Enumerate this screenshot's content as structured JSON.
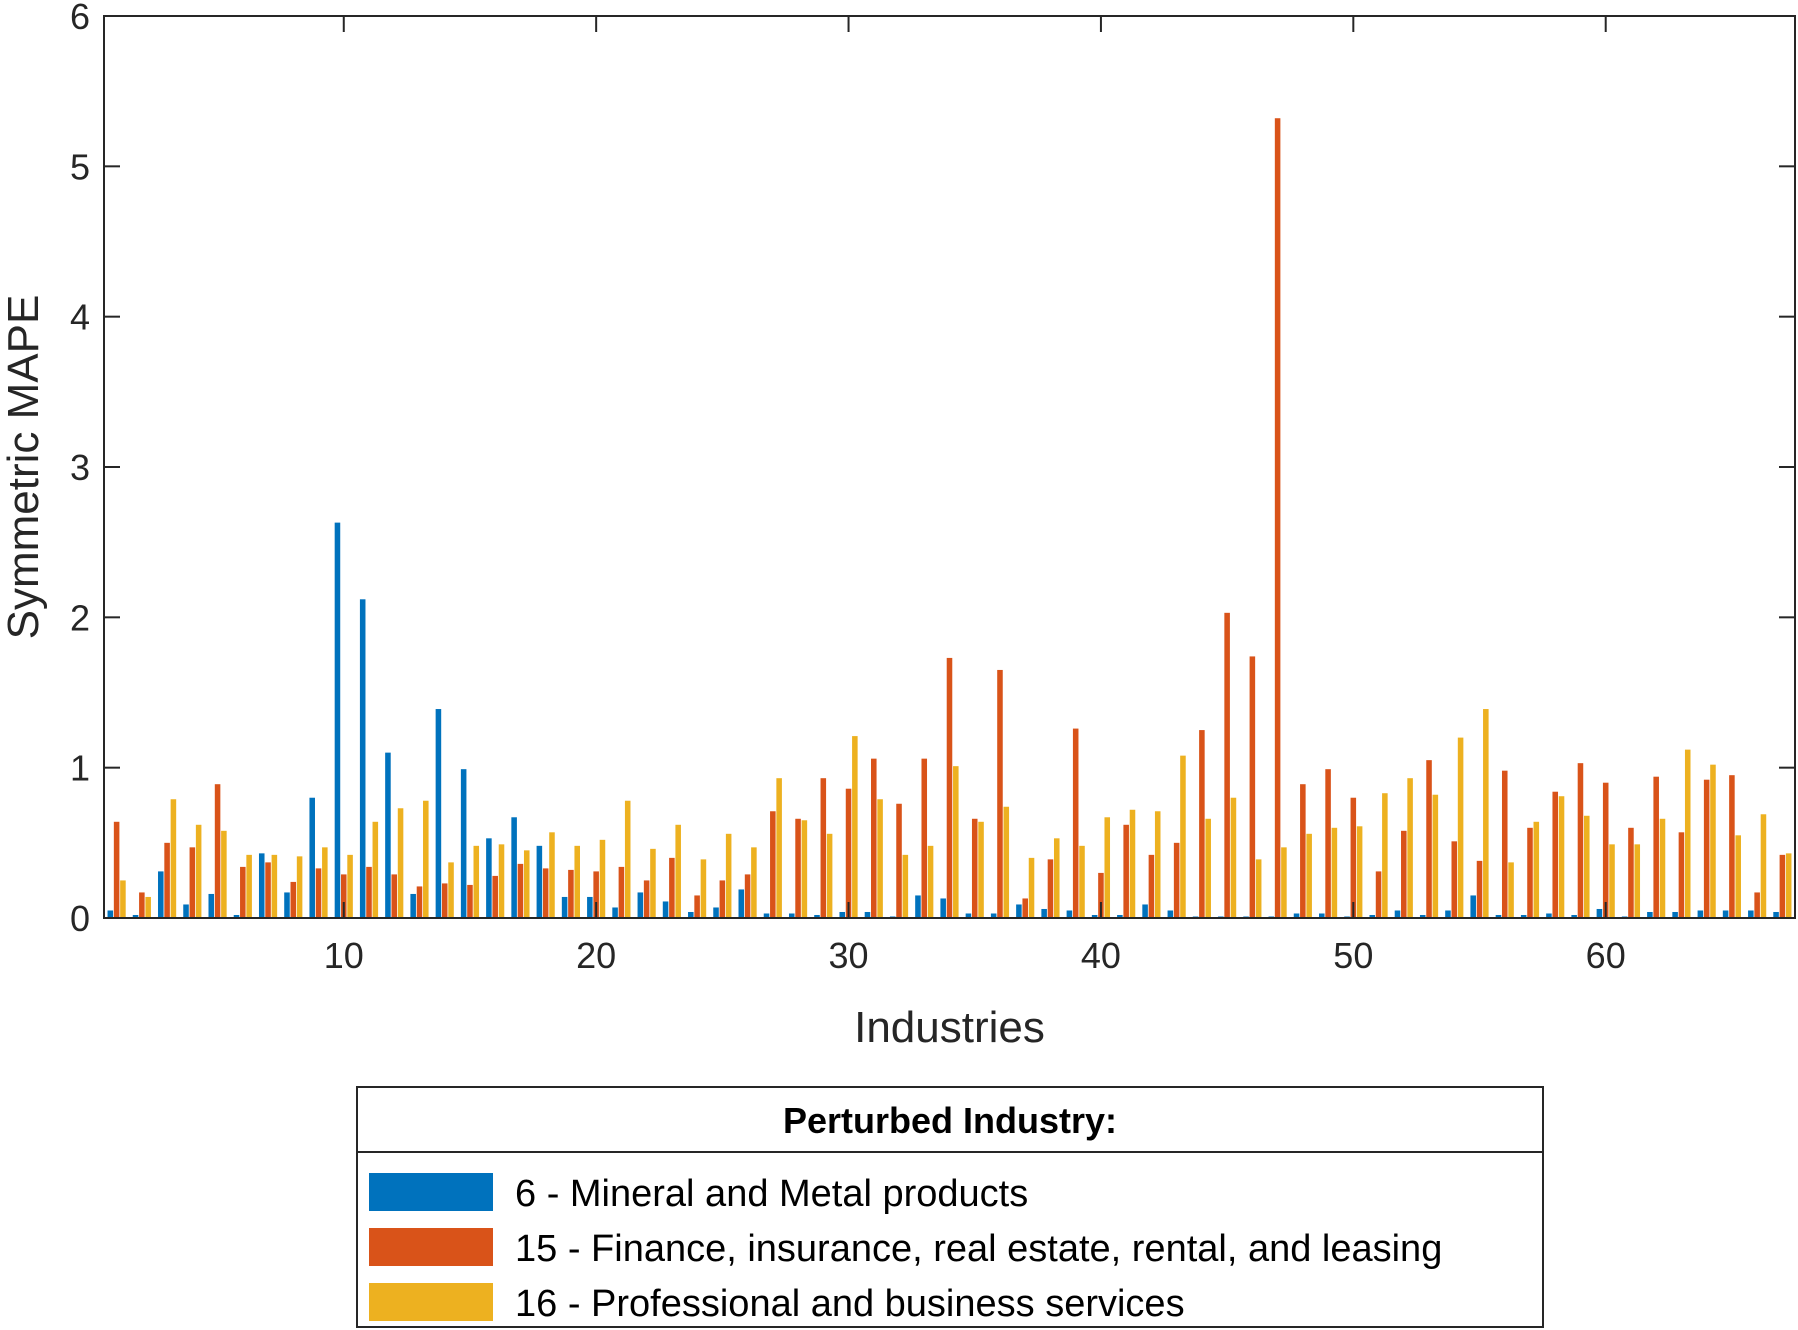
{
  "chart_data": {
    "type": "bar",
    "xlabel": "Industries",
    "ylabel": "Symmetric MAPE",
    "ylim": [
      0,
      6
    ],
    "xlim": [
      0.5,
      67.5
    ],
    "yticks": [
      0,
      1,
      2,
      3,
      4,
      5,
      6
    ],
    "xticks": [
      10,
      20,
      30,
      40,
      50,
      60
    ],
    "grid": false,
    "legend_placement": "below",
    "legend_title": "Perturbed Industry:",
    "x": [
      1,
      2,
      3,
      4,
      5,
      6,
      7,
      8,
      9,
      10,
      11,
      12,
      13,
      14,
      15,
      16,
      17,
      18,
      19,
      20,
      21,
      22,
      23,
      24,
      25,
      26,
      27,
      28,
      29,
      30,
      31,
      32,
      33,
      34,
      35,
      36,
      37,
      38,
      39,
      40,
      41,
      42,
      43,
      44,
      45,
      46,
      47,
      48,
      49,
      50,
      51,
      52,
      53,
      54,
      55,
      56,
      57,
      58,
      59,
      60,
      61,
      62,
      63,
      64,
      65,
      66,
      67
    ],
    "series": [
      {
        "name": "6 - Mineral and Metal products",
        "color": "#0072BD",
        "values": [
          0.05,
          0.02,
          0.31,
          0.09,
          0.16,
          0.02,
          0.43,
          0.17,
          0.8,
          2.63,
          2.12,
          1.1,
          0.16,
          1.39,
          0.99,
          0.53,
          0.67,
          0.48,
          0.14,
          0.14,
          0.07,
          0.17,
          0.11,
          0.04,
          0.07,
          0.19,
          0.03,
          0.03,
          0.02,
          0.04,
          0.04,
          0.01,
          0.15,
          0.13,
          0.03,
          0.03,
          0.09,
          0.06,
          0.05,
          0.02,
          0.02,
          0.09,
          0.05,
          0.01,
          0.01,
          0.01,
          0.01,
          0.03,
          0.03,
          0.01,
          0.02,
          0.05,
          0.02,
          0.05,
          0.15,
          0.02,
          0.02,
          0.03,
          0.02,
          0.06,
          0.01,
          0.04,
          0.04,
          0.05,
          0.05,
          0.05,
          0.04
        ]
      },
      {
        "name": "15 - Finance, insurance, real estate, rental, and leasing",
        "color": "#D95319",
        "values": [
          0.64,
          0.17,
          0.5,
          0.47,
          0.89,
          0.34,
          0.37,
          0.24,
          0.33,
          0.29,
          0.34,
          0.29,
          0.21,
          0.23,
          0.22,
          0.28,
          0.36,
          0.33,
          0.32,
          0.31,
          0.34,
          0.25,
          0.4,
          0.15,
          0.25,
          0.29,
          0.71,
          0.66,
          0.93,
          0.86,
          1.06,
          0.76,
          1.06,
          1.73,
          0.66,
          1.65,
          0.13,
          0.39,
          1.26,
          0.3,
          0.62,
          0.42,
          0.5,
          1.25,
          2.03,
          1.74,
          5.32,
          0.89,
          0.99,
          0.8,
          0.31,
          0.58,
          1.05,
          0.51,
          0.38,
          0.98,
          0.6,
          0.84,
          1.03,
          0.9,
          0.6,
          0.94,
          0.57,
          0.92,
          0.95,
          0.17,
          0.42
        ]
      },
      {
        "name": "16 - Professional and business services",
        "color": "#EDB120",
        "values": [
          0.25,
          0.14,
          0.79,
          0.62,
          0.58,
          0.42,
          0.42,
          0.41,
          0.47,
          0.42,
          0.64,
          0.73,
          0.78,
          0.37,
          0.48,
          0.49,
          0.45,
          0.57,
          0.48,
          0.52,
          0.78,
          0.46,
          0.62,
          0.39,
          0.56,
          0.47,
          0.93,
          0.65,
          0.56,
          1.21,
          0.79,
          0.42,
          0.48,
          1.01,
          0.64,
          0.74,
          0.4,
          0.53,
          0.48,
          0.67,
          0.72,
          0.71,
          1.08,
          0.66,
          0.8,
          0.39,
          0.47,
          0.56,
          0.6,
          0.61,
          0.83,
          0.93,
          0.82,
          1.2,
          1.39,
          0.37,
          0.64,
          0.81,
          0.68,
          0.49,
          0.49,
          0.66,
          1.12,
          1.02,
          0.55,
          0.69,
          0.43
        ]
      }
    ]
  }
}
